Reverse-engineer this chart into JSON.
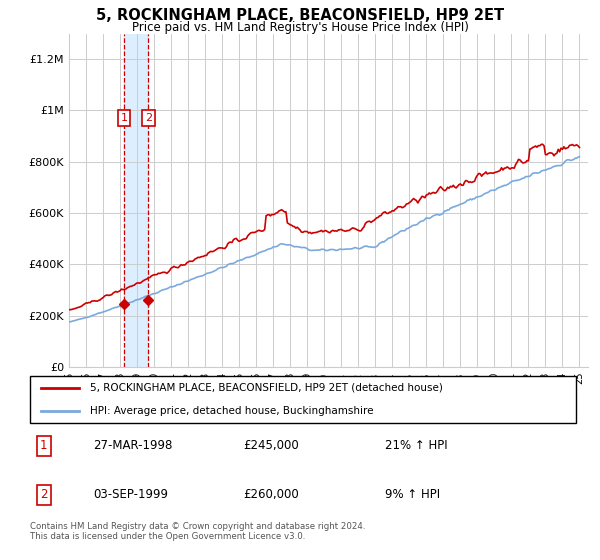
{
  "title": "5, ROCKINGHAM PLACE, BEACONSFIELD, HP9 2ET",
  "subtitle": "Price paid vs. HM Land Registry's House Price Index (HPI)",
  "sale1_year": 1998.23,
  "sale1_price": 245000,
  "sale1_label": "1",
  "sale2_year": 1999.67,
  "sale2_price": 260000,
  "sale2_label": "2",
  "sale1_date": "27-MAR-1998",
  "sale1_amount": "£245,000",
  "sale1_hpi": "21% ↑ HPI",
  "sale2_date": "03-SEP-1999",
  "sale2_amount": "£260,000",
  "sale2_hpi": "9% ↑ HPI",
  "legend_label1": "5, ROCKINGHAM PLACE, BEACONSFIELD, HP9 2ET (detached house)",
  "legend_label2": "HPI: Average price, detached house, Buckinghamshire",
  "footer": "Contains HM Land Registry data © Crown copyright and database right 2024.\nThis data is licensed under the Open Government Licence v3.0.",
  "price_color": "#cc0000",
  "hpi_color": "#7aaadd",
  "shade_color": "#ddeeff",
  "grid_color": "#cccccc",
  "bg_color": "#ffffff",
  "ylim": [
    0,
    1300000
  ],
  "xlim_start": 1995.0,
  "xlim_end": 2025.5,
  "yticks": [
    0,
    200000,
    400000,
    600000,
    800000,
    1000000,
    1200000
  ],
  "ytick_labels": [
    "£0",
    "£200K",
    "£400K",
    "£600K",
    "£800K",
    "£1M",
    "£1.2M"
  ]
}
